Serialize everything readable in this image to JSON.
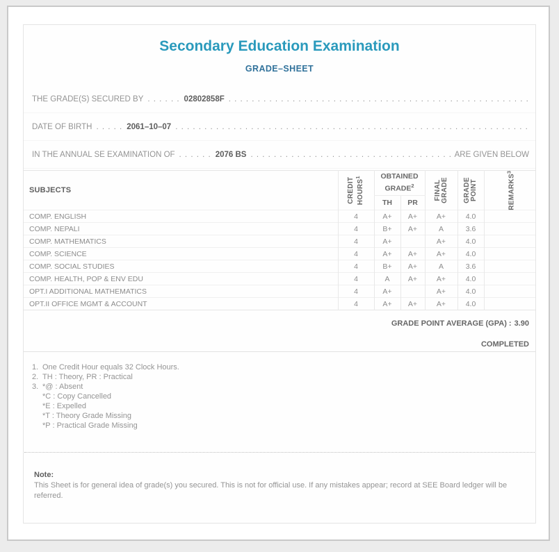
{
  "header": {
    "title": "Secondary Education Examination",
    "subtitle": "GRADE–SHEET"
  },
  "statements": [
    {
      "label": "THE GRADE(S) SECURED BY",
      "dots": ". . . . . .",
      "value": "02802858F",
      "suffix": ""
    },
    {
      "label": "DATE OF BIRTH",
      "dots": ". . . . .",
      "value": "2061–10–07",
      "suffix": ""
    },
    {
      "label": "IN THE ANNUAL SE EXAMINATION OF",
      "dots": ". . . . . .",
      "value": "2076 BS",
      "suffix": "ARE GIVEN BELOW"
    }
  ],
  "leader_trail": ". . . . . . . . . . . . . . . . . . . . . . . . . . . . . . . . . . . . . . . . . . . . . . . . . . . . . . . . . . . . . . . . . . . . . . . . . . . . . . . . . . . . . . . . . . . . . . . . . . . . . . . . . . . . . . . . . . . . . . . . . . . . . . . . . . . . . . . .",
  "table": {
    "headers": {
      "subjects": "SUBJECTS",
      "credit_hours": {
        "line1": "CREDIT",
        "line2": "HOURS",
        "sup": "1"
      },
      "obtained_grade": {
        "line1": "OBTAINED",
        "line2": "GRADE",
        "sup": "2"
      },
      "th": "TH",
      "pr": "PR",
      "final_grade": {
        "line1": "FINAL",
        "line2": "GRADE"
      },
      "grade_point": {
        "line1": "GRADE",
        "line2": "POINT"
      },
      "remarks": {
        "text": "REMARKS",
        "sup": "3"
      }
    },
    "rows": [
      {
        "subject": "COMP. ENGLISH",
        "credit": "4",
        "th": "A+",
        "pr": "A+",
        "final": "A+",
        "gp": "4.0",
        "remarks": ""
      },
      {
        "subject": "COMP. NEPALI",
        "credit": "4",
        "th": "B+",
        "pr": "A+",
        "final": "A",
        "gp": "3.6",
        "remarks": ""
      },
      {
        "subject": "COMP. MATHEMATICS",
        "credit": "4",
        "th": "A+",
        "pr": "",
        "final": "A+",
        "gp": "4.0",
        "remarks": ""
      },
      {
        "subject": "COMP. SCIENCE",
        "credit": "4",
        "th": "A+",
        "pr": "A+",
        "final": "A+",
        "gp": "4.0",
        "remarks": ""
      },
      {
        "subject": "COMP. SOCIAL STUDIES",
        "credit": "4",
        "th": "B+",
        "pr": "A+",
        "final": "A",
        "gp": "3.6",
        "remarks": ""
      },
      {
        "subject": "COMP. HEALTH, POP & ENV EDU",
        "credit": "4",
        "th": "A",
        "pr": "A+",
        "final": "A+",
        "gp": "4.0",
        "remarks": ""
      },
      {
        "subject": "OPT.I ADDITIONAL MATHEMATICS",
        "credit": "4",
        "th": "A+",
        "pr": "",
        "final": "A+",
        "gp": "4.0",
        "remarks": ""
      },
      {
        "subject": "OPT.II OFFICE MGMT & ACCOUNT",
        "credit": "4",
        "th": "A+",
        "pr": "A+",
        "final": "A+",
        "gp": "4.0",
        "remarks": ""
      }
    ]
  },
  "summary": {
    "gpa_label": "GRADE POINT AVERAGE (GPA) :",
    "gpa_value": "3.90",
    "status": "COMPLETED"
  },
  "footnotes": [
    {
      "num": "1.",
      "lines": [
        "One Credit Hour equals 32 Clock Hours."
      ]
    },
    {
      "num": "2.",
      "lines": [
        "TH : Theory, PR : Practical"
      ]
    },
    {
      "num": "3.",
      "lines": [
        "*@ : Absent",
        "*C : Copy Cancelled",
        "*E : Expelled",
        "*T : Theory Grade Missing",
        "*P : Practical Grade Missing"
      ]
    }
  ],
  "note": {
    "title": "Note:",
    "body": "This Sheet is for general idea of grade(s) you secured. This is not for official use. If any mistakes appear; record at SEE Board ledger will be referred."
  },
  "colors": {
    "title_teal": "#2a9abc",
    "subtitle_blue": "#31729b",
    "body_gray": "#949494",
    "value_gray": "#5d5d5d"
  }
}
